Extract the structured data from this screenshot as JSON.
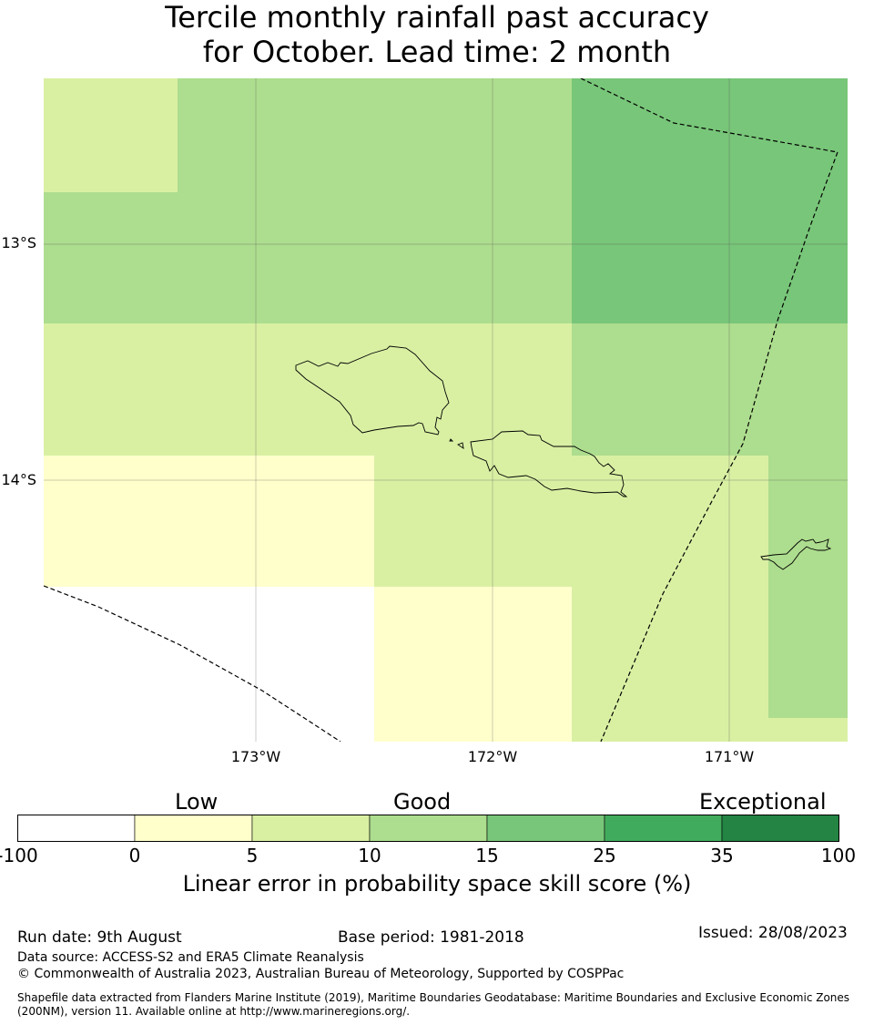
{
  "title": {
    "line1": "Tercile monthly rainfall past accuracy",
    "line2": "for October. Lead time: 2 month"
  },
  "map": {
    "lat_labels": [
      "13°S",
      "14°S"
    ],
    "lon_labels": [
      "173°W",
      "172°W",
      "171°W"
    ]
  },
  "colorbar": {
    "category_labels": [
      "Low",
      "Good",
      "Exceptional"
    ],
    "ticks": [
      "-100",
      "0",
      "5",
      "10",
      "15",
      "25",
      "35",
      "100"
    ],
    "colors": [
      "#ffffff",
      "#ffffcc",
      "#d9f0a3",
      "#addd8e",
      "#78c679",
      "#41ab5d",
      "#238443"
    ],
    "title": "Linear error in probability space skill score (%)"
  },
  "footer": {
    "run_date": "Run date: 9th August",
    "base_period": "Base period: 1981-2018",
    "issued": "Issued: 28/08/2023",
    "data_source": "Data source: ACCESS-S2 and ERA5 Climate Reanalysis",
    "copyright": "© Commonwealth of Australia 2023, Australian Bureau of Meteorology, Supported by COSPPac",
    "shapefile_note": "Shapefile data extracted from Flanders Marine Institute (2019), Maritime Boundaries Geodatabase: Maritime Boundaries and Exclusive Economic Zones (200NM), version 11. Available online at http://www.marineregions.org/."
  }
}
